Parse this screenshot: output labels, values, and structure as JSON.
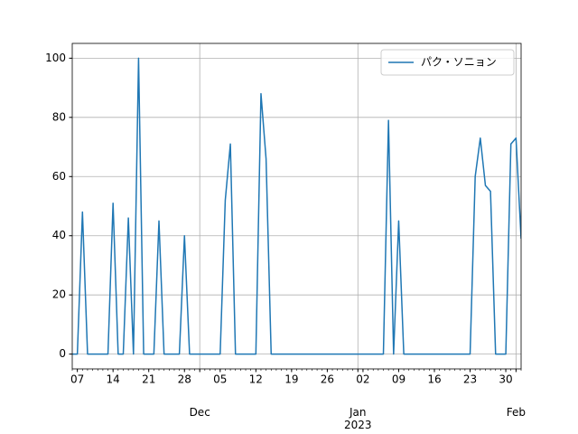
{
  "chart_data": {
    "type": "line",
    "x": [
      "2022-11-06",
      "2022-11-07",
      "2022-11-08",
      "2022-11-09",
      "2022-11-10",
      "2022-11-11",
      "2022-11-12",
      "2022-11-13",
      "2022-11-14",
      "2022-11-15",
      "2022-11-16",
      "2022-11-17",
      "2022-11-18",
      "2022-11-19",
      "2022-11-20",
      "2022-11-21",
      "2022-11-22",
      "2022-11-23",
      "2022-11-24",
      "2022-11-25",
      "2022-11-26",
      "2022-11-27",
      "2022-11-28",
      "2022-11-29",
      "2022-11-30",
      "2022-12-01",
      "2022-12-02",
      "2022-12-03",
      "2022-12-04",
      "2022-12-05",
      "2022-12-06",
      "2022-12-07",
      "2022-12-08",
      "2022-12-09",
      "2022-12-10",
      "2022-12-11",
      "2022-12-12",
      "2022-12-13",
      "2022-12-14",
      "2022-12-15",
      "2022-12-16",
      "2022-12-17",
      "2022-12-18",
      "2022-12-19",
      "2022-12-20",
      "2022-12-21",
      "2022-12-22",
      "2022-12-23",
      "2022-12-24",
      "2022-12-25",
      "2022-12-26",
      "2022-12-27",
      "2022-12-28",
      "2022-12-29",
      "2022-12-30",
      "2022-12-31",
      "2023-01-01",
      "2023-01-02",
      "2023-01-03",
      "2023-01-04",
      "2023-01-05",
      "2023-01-06",
      "2023-01-07",
      "2023-01-08",
      "2023-01-09",
      "2023-01-10",
      "2023-01-11",
      "2023-01-12",
      "2023-01-13",
      "2023-01-14",
      "2023-01-15",
      "2023-01-16",
      "2023-01-17",
      "2023-01-18",
      "2023-01-19",
      "2023-01-20",
      "2023-01-21",
      "2023-01-22",
      "2023-01-23",
      "2023-01-24",
      "2023-01-25",
      "2023-01-26",
      "2023-01-27",
      "2023-01-28",
      "2023-01-29",
      "2023-01-30",
      "2023-01-31",
      "2023-02-01",
      "2023-02-02"
    ],
    "series": [
      {
        "name": "パク・ソニョン",
        "color": "#1f77b4",
        "values": [
          0,
          0,
          48,
          0,
          0,
          0,
          0,
          0,
          51,
          0,
          0,
          46,
          0,
          100,
          0,
          0,
          0,
          45,
          0,
          0,
          0,
          0,
          40,
          0,
          0,
          0,
          0,
          0,
          0,
          0,
          52,
          71,
          0,
          0,
          0,
          0,
          0,
          88,
          66,
          0,
          0,
          0,
          0,
          0,
          0,
          0,
          0,
          0,
          0,
          0,
          0,
          0,
          0,
          0,
          0,
          0,
          0,
          0,
          0,
          0,
          0,
          0,
          79,
          0,
          45,
          0,
          0,
          0,
          0,
          0,
          0,
          0,
          0,
          0,
          0,
          0,
          0,
          0,
          0,
          60,
          73,
          57,
          55,
          0,
          0,
          0,
          71,
          73,
          39
        ]
      }
    ],
    "xlim": [
      "2022-11-06",
      "2023-02-02"
    ],
    "xticks": [
      {
        "value": "2022-11-07",
        "label": "07"
      },
      {
        "value": "2022-11-14",
        "label": "14"
      },
      {
        "value": "2022-11-21",
        "label": "21"
      },
      {
        "value": "2022-11-28",
        "label": "28"
      },
      {
        "value": "2022-12-05",
        "label": "05"
      },
      {
        "value": "2022-12-12",
        "label": "12"
      },
      {
        "value": "2022-12-19",
        "label": "19"
      },
      {
        "value": "2022-12-26",
        "label": "26"
      },
      {
        "value": "2023-01-02",
        "label": "02"
      },
      {
        "value": "2023-01-09",
        "label": "09"
      },
      {
        "value": "2023-01-16",
        "label": "16"
      },
      {
        "value": "2023-01-23",
        "label": "23"
      },
      {
        "value": "2023-01-30",
        "label": "30"
      }
    ],
    "xticks_month": [
      {
        "value": "2022-12-01",
        "label": "Dec"
      },
      {
        "value": "2023-01-01",
        "label": "Jan\n2023"
      },
      {
        "value": "2023-02-01",
        "label": "Feb"
      }
    ],
    "ylim": [
      -5,
      105
    ],
    "yticks": [
      0,
      20,
      40,
      60,
      80,
      100
    ],
    "grid": true,
    "legend": "upper right"
  }
}
